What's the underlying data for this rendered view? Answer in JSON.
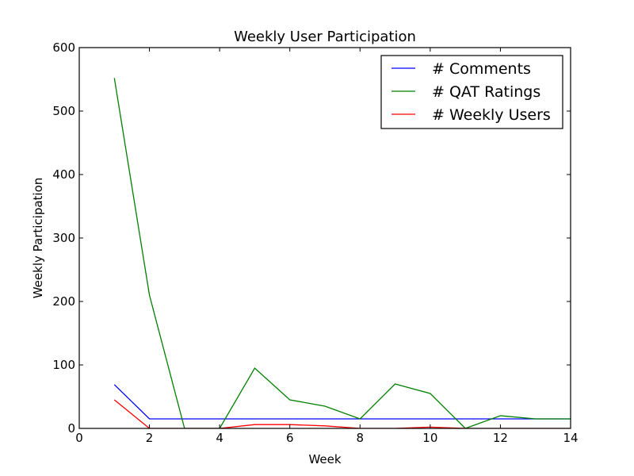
{
  "chart_data": {
    "type": "line",
    "title": "Weekly User Participation",
    "xlabel": "Week",
    "ylabel": "Weekly Participation",
    "xlim": [
      0,
      14
    ],
    "ylim": [
      0,
      600
    ],
    "xticks": [
      0,
      2,
      4,
      6,
      8,
      10,
      12,
      14
    ],
    "yticks": [
      0,
      100,
      200,
      300,
      400,
      500,
      600
    ],
    "grid": false,
    "legend_position": "top-right",
    "x": [
      1,
      2,
      3,
      4,
      5,
      6,
      7,
      8,
      9,
      10,
      11,
      12,
      13,
      14
    ],
    "series": [
      {
        "name": "# Comments",
        "color": "#0000ff",
        "values": [
          69,
          15,
          15,
          15,
          15,
          15,
          15,
          15,
          15,
          15,
          15,
          15,
          15,
          15
        ]
      },
      {
        "name": "# QAT Ratings",
        "color": "#008000",
        "values": [
          552,
          210,
          0,
          0,
          95,
          45,
          35,
          15,
          70,
          55,
          0,
          20,
          15,
          15
        ]
      },
      {
        "name": "# Weekly Users",
        "color": "#ff0000",
        "values": [
          45,
          0,
          0,
          0,
          6,
          6,
          4,
          0,
          0,
          2,
          0,
          0,
          0,
          0
        ]
      }
    ]
  }
}
